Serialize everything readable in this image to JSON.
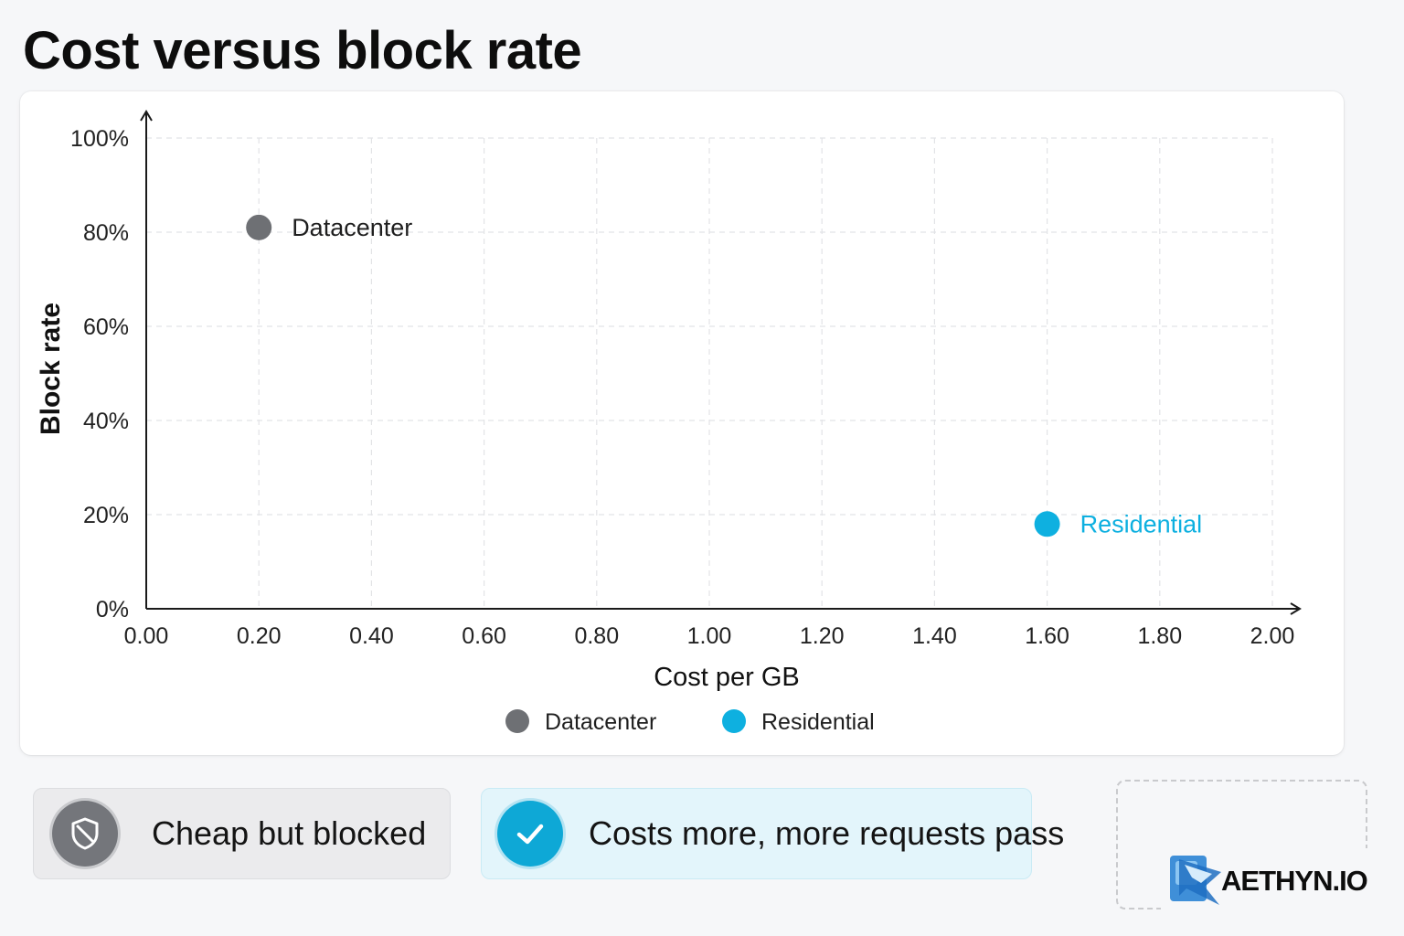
{
  "title": "Cost versus block rate",
  "chart_data": {
    "type": "scatter",
    "xlabel": "Cost per GB",
    "ylabel": "Block rate",
    "xlim": [
      0,
      2
    ],
    "ylim": [
      0,
      100
    ],
    "x_ticks": [
      "0.00",
      "0.20",
      "0.40",
      "0.60",
      "0.80",
      "1.00",
      "1.20",
      "1.40",
      "1.60",
      "1.80",
      "2.00"
    ],
    "y_ticks": [
      "0%",
      "20%",
      "40%",
      "60%",
      "80%",
      "100%"
    ],
    "grid": true,
    "legend_position": "bottom-center",
    "series": [
      {
        "name": "Datacenter",
        "color": "#6e7074",
        "points": [
          {
            "x": 0.2,
            "y": 81,
            "label": "Datacenter"
          }
        ]
      },
      {
        "name": "Residential",
        "color": "#0eb0e0",
        "points": [
          {
            "x": 1.6,
            "y": 18,
            "label": "Residential"
          }
        ]
      }
    ]
  },
  "callouts": [
    {
      "text": "Cheap but blocked",
      "icon": "shield-off-icon"
    },
    {
      "text": "Costs more, more requests pass",
      "icon": "check-icon"
    }
  ],
  "logo": {
    "text": "AETHYN.IO",
    "icon": "aethyn-logo-mark"
  }
}
